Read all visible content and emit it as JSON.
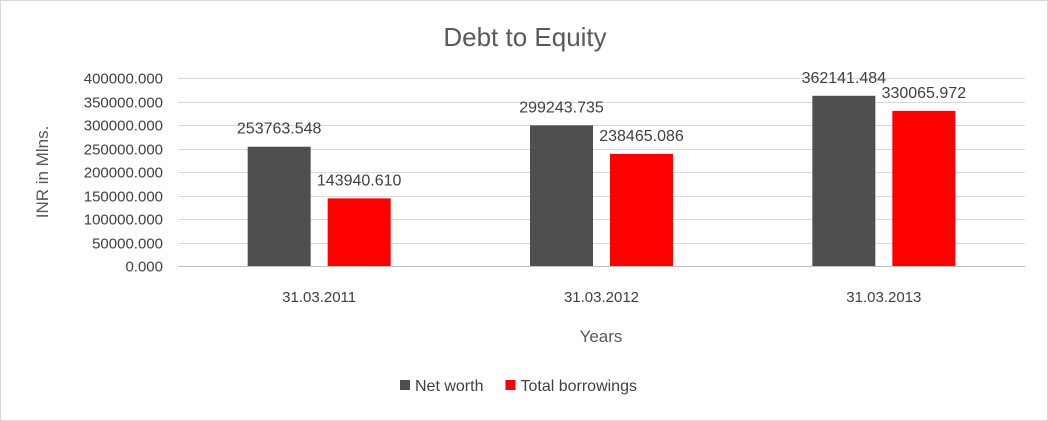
{
  "chart_data": {
    "type": "bar",
    "title": "Debt to Equity",
    "xlabel": "Years",
    "ylabel": "INR in Mlns.",
    "categories": [
      "31.03.2011",
      "31.03.2012",
      "31.03.2013"
    ],
    "series": [
      {
        "name": "Net worth",
        "color": "#4f4f4f",
        "values": [
          253763.548,
          299243.735,
          362141.484
        ],
        "labels": [
          "253763.548",
          "299243.735",
          "362141.484"
        ]
      },
      {
        "name": "Total borrowings",
        "color": "#ff0000",
        "values": [
          143940.61,
          238465.086,
          330065.972
        ],
        "labels": [
          "143940.610",
          "238465.086",
          "330065.972"
        ]
      }
    ],
    "ylim": [
      0,
      400000
    ],
    "yticks": [
      0,
      50000,
      100000,
      150000,
      200000,
      250000,
      300000,
      350000,
      400000
    ],
    "ytick_labels": [
      "0.000",
      "50000.000",
      "100000.000",
      "150000.000",
      "200000.000",
      "250000.000",
      "300000.000",
      "350000.000",
      "400000.000"
    ],
    "grid": true,
    "legend_position": "bottom"
  }
}
